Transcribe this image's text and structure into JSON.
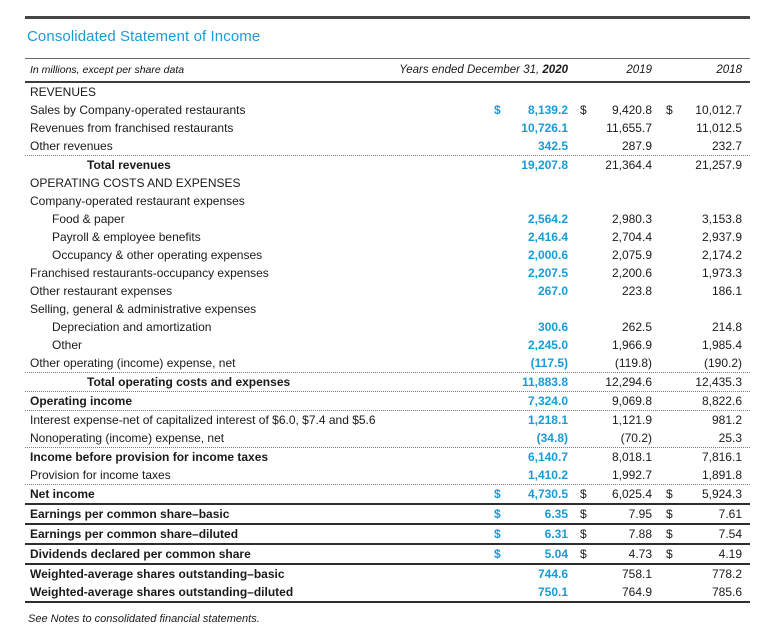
{
  "title": "Consolidated Statement of Income",
  "colors": {
    "accent_blue": "#189cd8",
    "text": "#1a1a1a",
    "rule_dark": "#454545"
  },
  "table": {
    "header": {
      "left_label": "In millions, except per share data",
      "period_label": "Years ended December 31,",
      "year_current": "2020",
      "year_prior_1": "2019",
      "year_prior_2": "2018"
    },
    "columns": [
      "2020",
      "2019",
      "2018"
    ],
    "rows": [
      {
        "label": "REVENUES",
        "indent": 0,
        "bold": false,
        "dollar": false,
        "values": null,
        "border": "none"
      },
      {
        "label": "Sales by Company-operated restaurants",
        "indent": 0,
        "bold": false,
        "dollar": true,
        "values": [
          "8,139.2",
          "9,420.8",
          "10,012.7"
        ],
        "border": "none"
      },
      {
        "label": "Revenues from franchised restaurants",
        "indent": 0,
        "bold": false,
        "dollar": false,
        "values": [
          "10,726.1",
          "11,655.7",
          "11,012.5"
        ],
        "border": "none"
      },
      {
        "label": "Other revenues",
        "indent": 0,
        "bold": false,
        "dollar": false,
        "values": [
          "342.5",
          "287.9",
          "232.7"
        ],
        "border": "dotted"
      },
      {
        "label": "Total revenues",
        "indent": 2,
        "bold": true,
        "dollar": false,
        "values": [
          "19,207.8",
          "21,364.4",
          "21,257.9"
        ],
        "border": "none"
      },
      {
        "label": "OPERATING COSTS AND EXPENSES",
        "indent": 0,
        "bold": false,
        "dollar": false,
        "values": null,
        "border": "none"
      },
      {
        "label": "Company-operated restaurant expenses",
        "indent": 0,
        "bold": false,
        "dollar": false,
        "values": null,
        "border": "none"
      },
      {
        "label": "Food & paper",
        "indent": 1,
        "bold": false,
        "dollar": false,
        "values": [
          "2,564.2",
          "2,980.3",
          "3,153.8"
        ],
        "border": "none"
      },
      {
        "label": "Payroll & employee benefits",
        "indent": 1,
        "bold": false,
        "dollar": false,
        "values": [
          "2,416.4",
          "2,704.4",
          "2,937.9"
        ],
        "border": "none"
      },
      {
        "label": "Occupancy & other operating expenses",
        "indent": 1,
        "bold": false,
        "dollar": false,
        "values": [
          "2,000.6",
          "2,075.9",
          "2,174.2"
        ],
        "border": "none"
      },
      {
        "label": "Franchised restaurants-occupancy expenses",
        "indent": 0,
        "bold": false,
        "dollar": false,
        "values": [
          "2,207.5",
          "2,200.6",
          "1,973.3"
        ],
        "border": "none"
      },
      {
        "label": "Other restaurant expenses",
        "indent": 0,
        "bold": false,
        "dollar": false,
        "values": [
          "267.0",
          "223.8",
          "186.1"
        ],
        "border": "none"
      },
      {
        "label": "Selling, general & administrative expenses",
        "indent": 0,
        "bold": false,
        "dollar": false,
        "values": null,
        "border": "none"
      },
      {
        "label": "Depreciation and amortization",
        "indent": 1,
        "bold": false,
        "dollar": false,
        "values": [
          "300.6",
          "262.5",
          "214.8"
        ],
        "border": "none"
      },
      {
        "label": "Other",
        "indent": 1,
        "bold": false,
        "dollar": false,
        "values": [
          "2,245.0",
          "1,966.9",
          "1,985.4"
        ],
        "border": "none"
      },
      {
        "label": "Other operating (income) expense, net",
        "indent": 0,
        "bold": false,
        "dollar": false,
        "values": [
          "(117.5)",
          "(119.8)",
          "(190.2)"
        ],
        "border": "dotted"
      },
      {
        "label": "Total operating costs and expenses",
        "indent": 2,
        "bold": true,
        "dollar": false,
        "values": [
          "11,883.8",
          "12,294.6",
          "12,435.3"
        ],
        "border": "dotted"
      },
      {
        "label": "Operating income",
        "indent": 0,
        "bold": true,
        "dollar": false,
        "values": [
          "7,324.0",
          "9,069.8",
          "8,822.6"
        ],
        "border": "dotted"
      },
      {
        "label": "Interest expense-net of capitalized interest of $6.0, $7.4 and $5.6",
        "indent": 0,
        "bold": false,
        "dollar": false,
        "values": [
          "1,218.1",
          "1,121.9",
          "981.2"
        ],
        "border": "none"
      },
      {
        "label": "Nonoperating (income) expense, net",
        "indent": 0,
        "bold": false,
        "dollar": false,
        "values": [
          "(34.8)",
          "(70.2)",
          "25.3"
        ],
        "border": "dotted"
      },
      {
        "label": "Income before provision for income taxes",
        "indent": 0,
        "bold": true,
        "dollar": false,
        "values": [
          "6,140.7",
          "8,018.1",
          "7,816.1"
        ],
        "border": "none"
      },
      {
        "label": "Provision for income taxes",
        "indent": 0,
        "bold": false,
        "dollar": false,
        "values": [
          "1,410.2",
          "1,992.7",
          "1,891.8"
        ],
        "border": "dotted"
      },
      {
        "label": "Net income",
        "indent": 0,
        "bold": true,
        "dollar": true,
        "values": [
          "4,730.5",
          "6,025.4",
          "5,924.3"
        ],
        "border": "solid"
      },
      {
        "label": "Earnings per common share–basic",
        "indent": 0,
        "bold": true,
        "dollar": true,
        "values": [
          "6.35",
          "7.95",
          "7.61"
        ],
        "border": "solid"
      },
      {
        "label": "Earnings per common share–diluted",
        "indent": 0,
        "bold": true,
        "dollar": true,
        "values": [
          "6.31",
          "7.88",
          "7.54"
        ],
        "border": "solid"
      },
      {
        "label": "Dividends declared per common share",
        "indent": 0,
        "bold": true,
        "dollar": true,
        "values": [
          "5.04",
          "4.73",
          "4.19"
        ],
        "border": "solid"
      },
      {
        "label": "Weighted-average shares outstanding–basic",
        "indent": 0,
        "bold": true,
        "dollar": false,
        "values": [
          "744.6",
          "758.1",
          "778.2"
        ],
        "border": "none"
      },
      {
        "label": "Weighted-average shares outstanding–diluted",
        "indent": 0,
        "bold": true,
        "dollar": false,
        "values": [
          "750.1",
          "764.9",
          "785.6"
        ],
        "border": "solid"
      }
    ]
  },
  "footnote": "See Notes to consolidated financial statements."
}
